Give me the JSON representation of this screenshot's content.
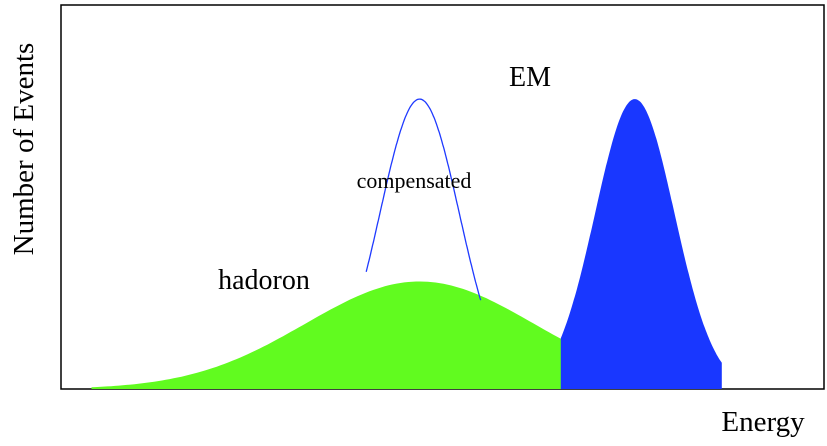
{
  "chart_data": {
    "type": "area",
    "title": "",
    "xlabel": "Energy",
    "ylabel": "Number of Events",
    "xlim": [
      0,
      1
    ],
    "ylim": [
      0,
      1
    ],
    "ticks": "none",
    "grid": false,
    "legend": "none",
    "series": [
      {
        "name": "hadoron",
        "shape": "gaussian",
        "fill": "#61fb1f",
        "filled": true,
        "center": 0.47,
        "sigma": 0.15,
        "peak": 0.28,
        "domain": [
          0.04,
          0.86
        ]
      },
      {
        "name": "EM",
        "shape": "gaussian",
        "fill": "#1937ff",
        "filled": true,
        "center": 0.752,
        "sigma": 0.052,
        "peak": 0.755,
        "domain": [
          0.655,
          0.866
        ]
      },
      {
        "name": "compensated",
        "shape": "gaussian",
        "stroke": "#1f3aff",
        "filled": false,
        "center": 0.47,
        "sigma": 0.052,
        "peak": 0.755,
        "domain": [
          0.4,
          0.55
        ]
      }
    ]
  }
}
